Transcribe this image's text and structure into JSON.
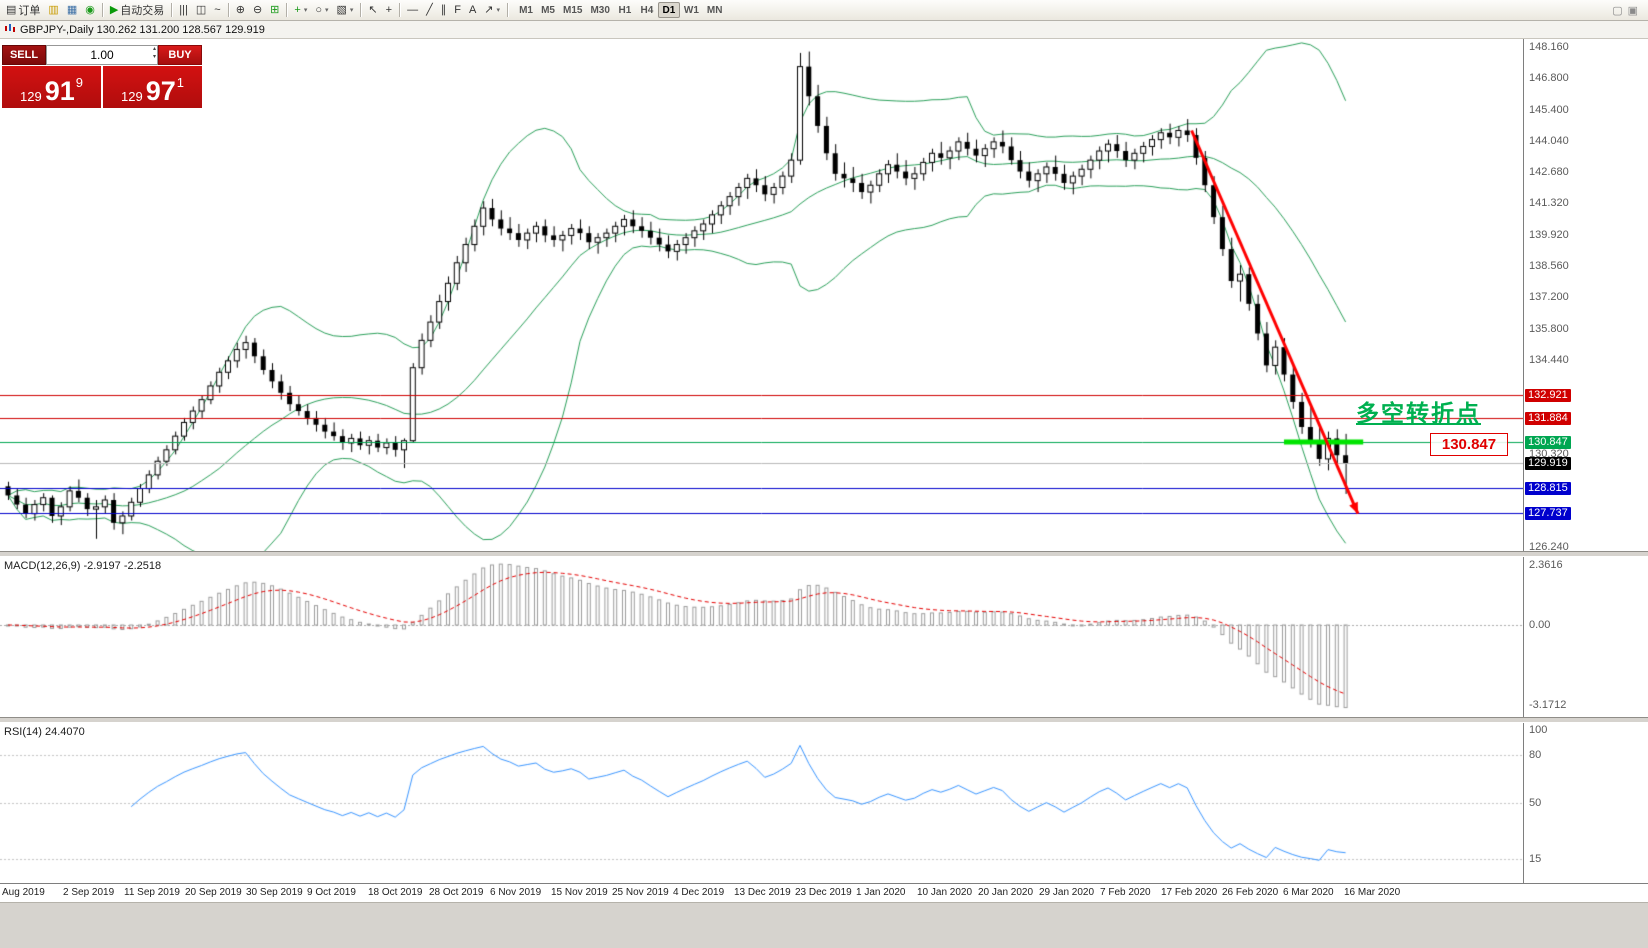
{
  "toolbar": {
    "buttons": [
      {
        "name": "new-order-button",
        "icon": "new-order-icon",
        "glyph": "▤",
        "label": "订单"
      },
      {
        "name": "market-watch-button",
        "icon": "market-watch-icon",
        "glyph": "▥",
        "color": "#c89b00"
      },
      {
        "name": "data-window-button",
        "icon": "data-window-icon",
        "glyph": "▦",
        "color": "#3a6ea5"
      },
      {
        "name": "help-button",
        "icon": "help-icon",
        "glyph": "◉",
        "color": "#1a9a1a"
      },
      {
        "sep": true
      },
      {
        "name": "autotrading-button",
        "icon": "autotrading-icon",
        "glyph": "▶",
        "label": "自动交易",
        "color": "#0a9a0a"
      },
      {
        "sep": true
      },
      {
        "name": "bar-chart-button",
        "icon": "bar-chart-icon",
        "glyph": "|||"
      },
      {
        "name": "candlestick-chart-button",
        "icon": "candlestick-chart-icon",
        "glyph": "◫"
      },
      {
        "name": "line-chart-button",
        "icon": "line-chart-icon",
        "glyph": "~"
      },
      {
        "sep": true
      },
      {
        "name": "zoom-in-button",
        "icon": "zoom-in-icon",
        "glyph": "⊕"
      },
      {
        "name": "zoom-out-button",
        "icon": "zoom-out-icon",
        "glyph": "⊖"
      },
      {
        "name": "tile-windows-button",
        "icon": "tile-windows-icon",
        "glyph": "⊞",
        "color": "#1a9a1a"
      },
      {
        "sep": true
      },
      {
        "name": "indicators-button",
        "icon": "add-indicator-icon",
        "glyph": "+",
        "color": "#1a9a1a",
        "caret": true
      },
      {
        "name": "periods-button",
        "icon": "clock-icon",
        "glyph": "○",
        "caret": true
      },
      {
        "name": "templates-button",
        "icon": "template-icon",
        "glyph": "▧",
        "caret": true
      },
      {
        "sep": true
      },
      {
        "name": "cursor-button",
        "icon": "cursor-icon",
        "glyph": "↖"
      },
      {
        "name": "crosshair-button",
        "icon": "crosshair-icon",
        "glyph": "+"
      },
      {
        "sep": true
      },
      {
        "name": "horizontal-line-button",
        "icon": "horizontal-line-icon",
        "glyph": "—"
      },
      {
        "name": "trendline-button",
        "icon": "trendline-icon",
        "glyph": "╱"
      },
      {
        "name": "channel-button",
        "icon": "channel-icon",
        "glyph": "∥"
      },
      {
        "name": "fibonacci-button",
        "icon": "fibonacci-icon",
        "glyph": "F"
      },
      {
        "name": "text-button",
        "icon": "text-icon",
        "glyph": "A"
      },
      {
        "name": "arrows-button",
        "icon": "arrows-icon",
        "glyph": "↗",
        "caret": true
      },
      {
        "sep": true
      }
    ],
    "timeframes": [
      "M1",
      "M5",
      "M15",
      "M30",
      "H1",
      "H4",
      "D1",
      "W1",
      "MN"
    ],
    "active_timeframe": "D1",
    "right_buttons": [
      {
        "name": "window-restore-icon",
        "glyph": "▢"
      },
      {
        "name": "window-menu-icon",
        "glyph": "▣"
      }
    ],
    "caret_glyph": "▾"
  },
  "chart": {
    "title_text": "GBPJPY-,Daily  130.262 131.200 128.567 129.919",
    "symbol": "GBPJPY-",
    "timeframe": "Daily",
    "ohlc": {
      "open": "130.262",
      "high": "131.200",
      "low": "128.567",
      "close": "129.919"
    }
  },
  "trade_panel": {
    "sell_label": "SELL",
    "buy_label": "BUY",
    "lot_value": "1.00",
    "spin_up": "▴",
    "spin_down": "▾",
    "sell_price": {
      "main": "129",
      "pips": "91",
      "frac": "9"
    },
    "buy_price": {
      "main": "129",
      "pips": "97",
      "frac": "1"
    }
  },
  "chart_data": {
    "type": "candlestick",
    "title": "GBPJPY- Daily with Bollinger Bands, MACD(12,26,9), RSI(14)",
    "price_axis": {
      "top_price": 148.51,
      "bottom_price": 126.06,
      "gray_labels": [
        {
          "text": "148.160",
          "value": 148.16
        },
        {
          "text": "146.800",
          "value": 146.8
        },
        {
          "text": "145.400",
          "value": 145.4
        },
        {
          "text": "144.040",
          "value": 144.04
        },
        {
          "text": "142.680",
          "value": 142.68
        },
        {
          "text": "141.320",
          "value": 141.32
        },
        {
          "text": "139.920",
          "value": 139.92
        },
        {
          "text": "138.560",
          "value": 138.56
        },
        {
          "text": "137.200",
          "value": 137.2
        },
        {
          "text": "135.800",
          "value": 135.8
        },
        {
          "text": "134.440",
          "value": 134.44
        },
        {
          "text": "130.320",
          "value": 130.32
        },
        {
          "text": "126.240",
          "value": 126.24
        }
      ]
    },
    "levels": [
      {
        "price": 132.921,
        "label": "132.921",
        "line_color": "#d00000",
        "tag_bg": "#d00000"
      },
      {
        "price": 131.884,
        "label": "131.884",
        "line_color": "#d00000",
        "tag_bg": "#d00000"
      },
      {
        "price": 130.847,
        "label": "130.847",
        "line_color": "#00a651",
        "tag_bg": "#00a651"
      },
      {
        "price": 129.919,
        "label": "129.919",
        "line_color": "#b8b8b8",
        "tag_bg": "#000000",
        "current": true
      },
      {
        "price": 128.815,
        "label": "128.815",
        "line_color": "#0000cd",
        "tag_bg": "#0000cd"
      },
      {
        "price": 127.737,
        "label": "127.737",
        "line_color": "#0000cd",
        "tag_bg": "#0000cd"
      }
    ],
    "bollinger": {
      "period": 20,
      "deviation": 2,
      "color": "#2aa05a"
    },
    "candles": [
      [
        128.9,
        129.1,
        128.3,
        128.5
      ],
      [
        128.5,
        128.8,
        127.9,
        128.1
      ],
      [
        128.1,
        128.4,
        127.5,
        127.7
      ],
      [
        127.7,
        128.3,
        127.4,
        128.1
      ],
      [
        128.1,
        128.6,
        127.8,
        128.4
      ],
      [
        128.4,
        128.5,
        127.3,
        127.6
      ],
      [
        127.6,
        128.2,
        127.2,
        128.0
      ],
      [
        128.0,
        128.9,
        127.8,
        128.7
      ],
      [
        128.7,
        129.2,
        128.2,
        128.4
      ],
      [
        128.4,
        128.6,
        127.6,
        127.9
      ],
      [
        127.9,
        128.3,
        126.6,
        128.0
      ],
      [
        128.0,
        128.5,
        127.7,
        128.3
      ],
      [
        128.3,
        128.6,
        127.0,
        127.3
      ],
      [
        127.3,
        127.8,
        126.8,
        127.6
      ],
      [
        127.6,
        128.4,
        127.4,
        128.2
      ],
      [
        128.2,
        129.0,
        128.0,
        128.8
      ],
      [
        128.8,
        129.6,
        128.6,
        129.4
      ],
      [
        129.4,
        130.2,
        129.2,
        130.0
      ],
      [
        130.0,
        130.7,
        129.8,
        130.5
      ],
      [
        130.5,
        131.3,
        130.3,
        131.1
      ],
      [
        131.1,
        131.9,
        130.9,
        131.7
      ],
      [
        131.7,
        132.4,
        131.4,
        132.2
      ],
      [
        132.2,
        132.9,
        131.9,
        132.7
      ],
      [
        132.7,
        133.5,
        132.5,
        133.3
      ],
      [
        133.3,
        134.1,
        133.0,
        133.9
      ],
      [
        133.9,
        134.6,
        133.6,
        134.4
      ],
      [
        134.4,
        135.2,
        134.1,
        134.9
      ],
      [
        134.9,
        135.5,
        134.5,
        135.2
      ],
      [
        135.2,
        135.4,
        134.3,
        134.6
      ],
      [
        134.6,
        134.9,
        133.8,
        134.0
      ],
      [
        134.0,
        134.3,
        133.2,
        133.5
      ],
      [
        133.5,
        133.8,
        132.7,
        133.0
      ],
      [
        133.0,
        133.3,
        132.2,
        132.5
      ],
      [
        132.5,
        132.9,
        132.0,
        132.2
      ],
      [
        132.2,
        132.5,
        131.6,
        131.9
      ],
      [
        131.9,
        132.2,
        131.3,
        131.6
      ],
      [
        131.6,
        131.9,
        131.0,
        131.3
      ],
      [
        131.3,
        131.7,
        130.9,
        131.1
      ],
      [
        131.1,
        131.4,
        130.5,
        130.8
      ],
      [
        130.8,
        131.2,
        130.4,
        131.0
      ],
      [
        131.0,
        131.3,
        130.5,
        130.7
      ],
      [
        130.7,
        131.1,
        130.3,
        130.9
      ],
      [
        130.9,
        131.2,
        130.4,
        130.6
      ],
      [
        130.6,
        131.0,
        130.3,
        130.8
      ],
      [
        130.8,
        131.1,
        130.2,
        130.5
      ],
      [
        130.5,
        131.0,
        129.7,
        130.9
      ],
      [
        130.9,
        134.3,
        130.8,
        134.1
      ],
      [
        134.1,
        135.6,
        133.8,
        135.3
      ],
      [
        135.3,
        136.4,
        135.0,
        136.1
      ],
      [
        136.1,
        137.3,
        135.8,
        137.0
      ],
      [
        137.0,
        138.1,
        136.6,
        137.8
      ],
      [
        137.8,
        139.0,
        137.5,
        138.7
      ],
      [
        138.7,
        139.8,
        138.3,
        139.5
      ],
      [
        139.5,
        140.6,
        139.2,
        140.3
      ],
      [
        140.3,
        141.4,
        139.9,
        141.1
      ],
      [
        141.1,
        141.5,
        140.3,
        140.6
      ],
      [
        140.6,
        141.0,
        139.9,
        140.2
      ],
      [
        140.2,
        140.7,
        139.7,
        140.0
      ],
      [
        140.0,
        140.4,
        139.4,
        139.7
      ],
      [
        139.7,
        140.2,
        139.3,
        140.0
      ],
      [
        140.0,
        140.5,
        139.6,
        140.3
      ],
      [
        140.3,
        140.6,
        139.6,
        139.9
      ],
      [
        139.9,
        140.3,
        139.4,
        139.7
      ],
      [
        139.7,
        140.1,
        139.2,
        139.9
      ],
      [
        139.9,
        140.4,
        139.5,
        140.2
      ],
      [
        140.2,
        140.6,
        139.7,
        140.0
      ],
      [
        140.0,
        140.3,
        139.3,
        139.6
      ],
      [
        139.6,
        140.0,
        139.1,
        139.8
      ],
      [
        139.8,
        140.2,
        139.4,
        140.0
      ],
      [
        140.0,
        140.5,
        139.6,
        140.3
      ],
      [
        140.3,
        140.8,
        139.9,
        140.6
      ],
      [
        140.6,
        141.0,
        140.0,
        140.3
      ],
      [
        140.3,
        140.7,
        139.8,
        140.1
      ],
      [
        140.1,
        140.5,
        139.5,
        139.8
      ],
      [
        139.8,
        140.2,
        139.2,
        139.5
      ],
      [
        139.5,
        139.9,
        138.9,
        139.2
      ],
      [
        139.2,
        139.7,
        138.8,
        139.5
      ],
      [
        139.5,
        140.0,
        139.1,
        139.8
      ],
      [
        139.8,
        140.3,
        139.4,
        140.1
      ],
      [
        140.1,
        140.6,
        139.7,
        140.4
      ],
      [
        140.4,
        141.0,
        140.0,
        140.8
      ],
      [
        140.8,
        141.4,
        140.4,
        141.2
      ],
      [
        141.2,
        141.8,
        140.8,
        141.6
      ],
      [
        141.6,
        142.2,
        141.2,
        142.0
      ],
      [
        142.0,
        142.6,
        141.5,
        142.4
      ],
      [
        142.4,
        142.8,
        141.8,
        142.1
      ],
      [
        142.1,
        142.5,
        141.4,
        141.7
      ],
      [
        141.7,
        142.2,
        141.3,
        142.0
      ],
      [
        142.0,
        142.7,
        141.7,
        142.5
      ],
      [
        142.5,
        143.5,
        142.2,
        143.2
      ],
      [
        143.2,
        147.9,
        143.0,
        147.3
      ],
      [
        147.3,
        147.96,
        145.6,
        146.0
      ],
      [
        146.0,
        146.5,
        144.4,
        144.7
      ],
      [
        144.7,
        145.1,
        143.2,
        143.5
      ],
      [
        143.5,
        143.9,
        142.3,
        142.6
      ],
      [
        142.6,
        143.1,
        142.0,
        142.4
      ],
      [
        142.4,
        142.9,
        141.8,
        142.2
      ],
      [
        142.2,
        142.6,
        141.5,
        141.8
      ],
      [
        141.8,
        142.3,
        141.3,
        142.1
      ],
      [
        142.1,
        142.8,
        141.8,
        142.6
      ],
      [
        142.6,
        143.2,
        142.2,
        143.0
      ],
      [
        143.0,
        143.5,
        142.4,
        142.7
      ],
      [
        142.7,
        143.2,
        142.1,
        142.4
      ],
      [
        142.4,
        142.9,
        141.9,
        142.6
      ],
      [
        142.6,
        143.3,
        142.3,
        143.1
      ],
      [
        143.1,
        143.7,
        142.7,
        143.5
      ],
      [
        143.5,
        144.0,
        143.0,
        143.3
      ],
      [
        143.3,
        143.8,
        142.8,
        143.6
      ],
      [
        143.6,
        144.2,
        143.2,
        144.0
      ],
      [
        144.0,
        144.4,
        143.4,
        143.7
      ],
      [
        143.7,
        144.1,
        143.1,
        143.4
      ],
      [
        143.4,
        143.9,
        142.9,
        143.7
      ],
      [
        143.7,
        144.2,
        143.3,
        144.0
      ],
      [
        144.0,
        144.5,
        143.5,
        143.8
      ],
      [
        143.8,
        144.2,
        143.0,
        143.2
      ],
      [
        143.2,
        143.6,
        142.4,
        142.7
      ],
      [
        142.7,
        143.1,
        142.0,
        142.3
      ],
      [
        142.3,
        142.8,
        141.8,
        142.6
      ],
      [
        142.6,
        143.1,
        142.2,
        142.9
      ],
      [
        142.9,
        143.4,
        142.3,
        142.6
      ],
      [
        142.6,
        143.0,
        141.9,
        142.2
      ],
      [
        142.2,
        142.7,
        141.7,
        142.5
      ],
      [
        142.5,
        143.0,
        142.1,
        142.8
      ],
      [
        142.8,
        143.4,
        142.4,
        143.2
      ],
      [
        143.2,
        143.8,
        142.8,
        143.6
      ],
      [
        143.6,
        144.1,
        143.1,
        143.9
      ],
      [
        143.9,
        144.3,
        143.3,
        143.6
      ],
      [
        143.6,
        144.0,
        142.9,
        143.2
      ],
      [
        143.2,
        143.7,
        142.8,
        143.5
      ],
      [
        143.5,
        144.0,
        143.1,
        143.8
      ],
      [
        143.8,
        144.3,
        143.4,
        144.1
      ],
      [
        144.1,
        144.6,
        143.7,
        144.4
      ],
      [
        144.4,
        144.8,
        143.9,
        144.2
      ],
      [
        144.2,
        144.7,
        143.8,
        144.5
      ],
      [
        144.5,
        145.0,
        144.0,
        144.3
      ],
      [
        144.3,
        144.6,
        143.0,
        143.3
      ],
      [
        143.3,
        143.6,
        141.8,
        142.1
      ],
      [
        142.1,
        142.5,
        140.4,
        140.7
      ],
      [
        140.7,
        141.2,
        139.0,
        139.3
      ],
      [
        139.3,
        139.8,
        137.6,
        137.9
      ],
      [
        137.9,
        138.6,
        137.0,
        138.2
      ],
      [
        138.2,
        138.5,
        136.6,
        136.9
      ],
      [
        136.9,
        137.3,
        135.3,
        135.6
      ],
      [
        135.6,
        136.1,
        133.9,
        134.2
      ],
      [
        134.2,
        135.3,
        133.8,
        135.0
      ],
      [
        135.0,
        135.4,
        133.5,
        133.8
      ],
      [
        133.8,
        134.2,
        132.3,
        132.6
      ],
      [
        132.6,
        133.0,
        131.2,
        131.5
      ],
      [
        131.5,
        132.4,
        130.6,
        130.9
      ],
      [
        130.9,
        131.6,
        129.8,
        130.1
      ],
      [
        130.1,
        131.3,
        129.6,
        131.0
      ],
      [
        131.0,
        131.4,
        129.9,
        130.262
      ],
      [
        130.262,
        131.2,
        128.567,
        129.919
      ]
    ],
    "x_labels": [
      "Aug 2019",
      "2 Sep 2019",
      "11 Sep 2019",
      "20 Sep 2019",
      "30 Sep 2019",
      "9 Oct 2019",
      "18 Oct 2019",
      "28 Oct 2019",
      "6 Nov 2019",
      "15 Nov 2019",
      "25 Nov 2019",
      "4 Dec 2019",
      "13 Dec 2019",
      "23 Dec 2019",
      "1 Jan 2020",
      "10 Jan 2020",
      "20 Jan 2020",
      "29 Jan 2020",
      "7 Feb 2020",
      "17 Feb 2020",
      "26 Feb 2020",
      "6 Mar 2020",
      "16 Mar 2020"
    ],
    "macd": {
      "label": "MACD(12,26,9) -2.9197 -2.2518",
      "params": [
        12,
        26,
        9
      ],
      "macd_value": -2.9197,
      "signal_value": -2.2518,
      "axis_labels": [
        {
          "text": "2.3616",
          "value": 2.3616
        },
        {
          "text": "0.00",
          "value": 0
        },
        {
          "text": "-3.1712",
          "value": -3.1712
        }
      ],
      "histogram_color": "#9c9c9c",
      "signal_color": "#e60000"
    },
    "rsi": {
      "label": "RSI(14) 24.4070",
      "period": 14,
      "value": 24.407,
      "axis_labels": [
        {
          "text": "100",
          "value": 100
        },
        {
          "text": "80",
          "value": 80
        },
        {
          "text": "50",
          "value": 50
        },
        {
          "text": "15",
          "value": 15
        }
      ],
      "level_lines": [
        80,
        50,
        15
      ],
      "color": "#3a96ff"
    },
    "drawings": {
      "trend_arrow": {
        "from_index": 134.5,
        "from_price": 144.5,
        "to_index": 153.4,
        "to_price": 127.7,
        "color": "#ff0000",
        "width": 3
      },
      "highlight_segment": {
        "price": 130.847,
        "from_index": 145,
        "to_index": 154,
        "color": "#00e400",
        "width": 5
      },
      "annotation_text": {
        "text": "多空转折点",
        "color": "#00b050"
      },
      "price_label_box": {
        "text": "130.847",
        "color": "#e00000"
      }
    }
  }
}
